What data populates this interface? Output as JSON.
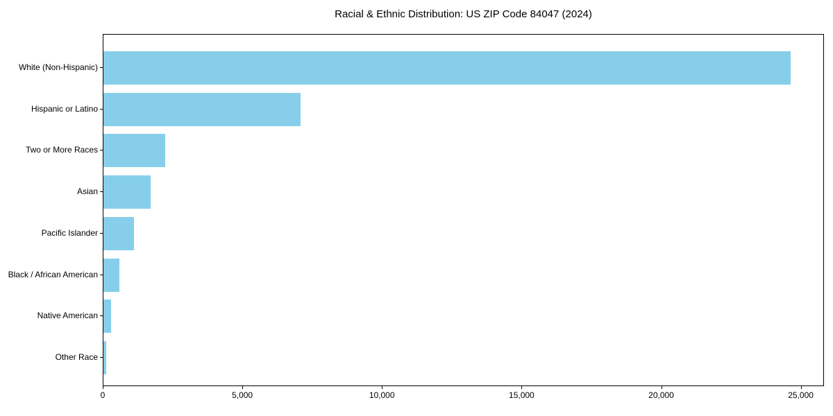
{
  "chart_data": {
    "type": "bar",
    "orientation": "horizontal",
    "title": "Racial & Ethnic Distribution: US ZIP Code 84047 (2024)",
    "categories": [
      "White (Non-Hispanic)",
      "Hispanic or Latino",
      "Two or More Races",
      "Asian",
      "Pacific Islander",
      "Black / African American",
      "Native American",
      "Other Race"
    ],
    "values": [
      24600,
      7050,
      2200,
      1700,
      1100,
      580,
      280,
      100
    ],
    "xlabel": "",
    "ylabel": "",
    "xlim": [
      0,
      25830
    ],
    "x_ticks": [
      0,
      5000,
      10000,
      15000,
      20000,
      25000
    ],
    "x_tick_labels": [
      "0",
      "5,000",
      "10,000",
      "15,000",
      "20,000",
      "25,000"
    ],
    "bar_color": "#87CEEB",
    "axis_color": "#000000",
    "background_color": "#ffffff",
    "grid": false,
    "legend": null
  }
}
